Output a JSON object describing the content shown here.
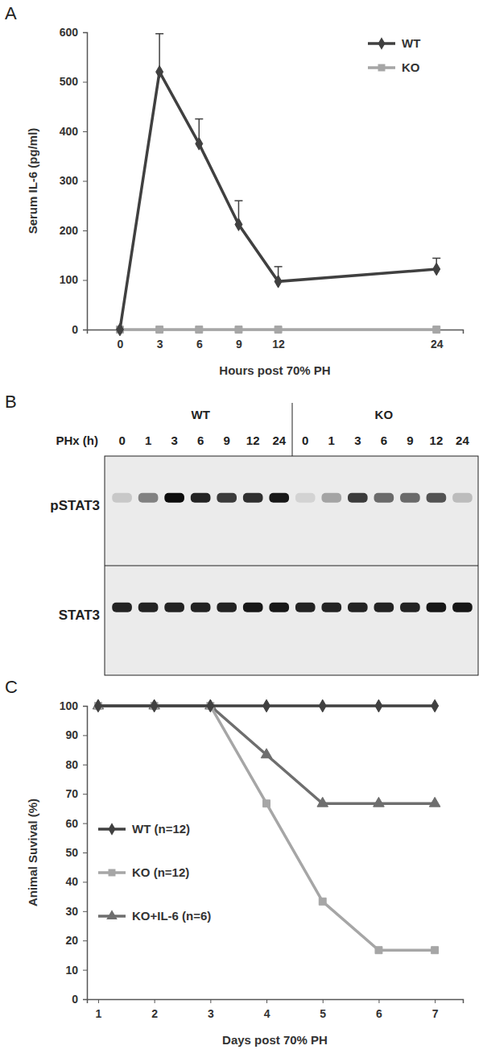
{
  "chart_data": [
    {
      "type": "line",
      "title": "A",
      "xlabel": "Hours post 70% PH",
      "ylabel": "Serum IL-6 (pg/ml)",
      "x": [
        0,
        3,
        6,
        9,
        12,
        24
      ],
      "xlim": [
        -2.5,
        26
      ],
      "xticks": [
        0,
        3,
        6,
        9,
        12,
        24
      ],
      "ylim": [
        0,
        600
      ],
      "yticks": [
        0,
        100,
        200,
        300,
        400,
        500,
        600
      ],
      "grid": false,
      "legend": "upper right",
      "series": [
        {
          "name": "WT",
          "color": "#404040",
          "marker": "diamond",
          "values": [
            0,
            520,
            375,
            212,
            97,
            122
          ],
          "errors": [
            null,
            77,
            50,
            48,
            30,
            22
          ]
        },
        {
          "name": "KO",
          "color": "#a6a6a6",
          "marker": "square",
          "values": [
            0,
            0,
            0,
            0,
            0,
            0
          ]
        }
      ]
    },
    {
      "type": "blot",
      "title": "B",
      "xlabel": "PHx (h)",
      "groups": [
        "WT",
        "KO"
      ],
      "categories": [
        0,
        1,
        3,
        6,
        9,
        12,
        24,
        0,
        1,
        3,
        6,
        9,
        12,
        24
      ],
      "rows": [
        {
          "name": "pSTAT3",
          "values": [
            0.15,
            0.45,
            0.95,
            0.85,
            0.75,
            0.8,
            0.9,
            0.1,
            0.3,
            0.75,
            0.55,
            0.55,
            0.65,
            0.2
          ]
        },
        {
          "name": "STAT3",
          "values": [
            0.85,
            0.85,
            0.85,
            0.85,
            0.85,
            0.9,
            0.9,
            0.85,
            0.85,
            0.85,
            0.85,
            0.85,
            0.9,
            0.9
          ]
        }
      ]
    },
    {
      "type": "line",
      "title": "C",
      "xlabel": "Days post 70% PH",
      "ylabel": "Animal Suvival (%)",
      "x": [
        1,
        2,
        3,
        4,
        5,
        6,
        7
      ],
      "xlim": [
        0.8,
        7.5
      ],
      "xticks": [
        1,
        2,
        3,
        4,
        5,
        6,
        7
      ],
      "ylim": [
        0,
        100
      ],
      "yticks": [
        0,
        10,
        20,
        30,
        40,
        50,
        60,
        70,
        80,
        90,
        100
      ],
      "grid": false,
      "legend": "center left",
      "series": [
        {
          "name": "WT (n=12)",
          "color": "#404040",
          "marker": "diamond",
          "values": [
            100,
            100,
            100,
            100,
            100,
            100,
            100
          ]
        },
        {
          "name": "KO (n=12)",
          "color": "#a6a6a6",
          "marker": "square",
          "values": [
            100,
            100,
            100,
            66.7,
            33.3,
            16.7,
            16.7
          ]
        },
        {
          "name": "KO+IL-6 (n=6)",
          "color": "#6e6e6e",
          "marker": "triangle",
          "values": [
            100,
            100,
            100,
            83.3,
            66.7,
            66.7,
            66.7
          ]
        }
      ]
    }
  ]
}
